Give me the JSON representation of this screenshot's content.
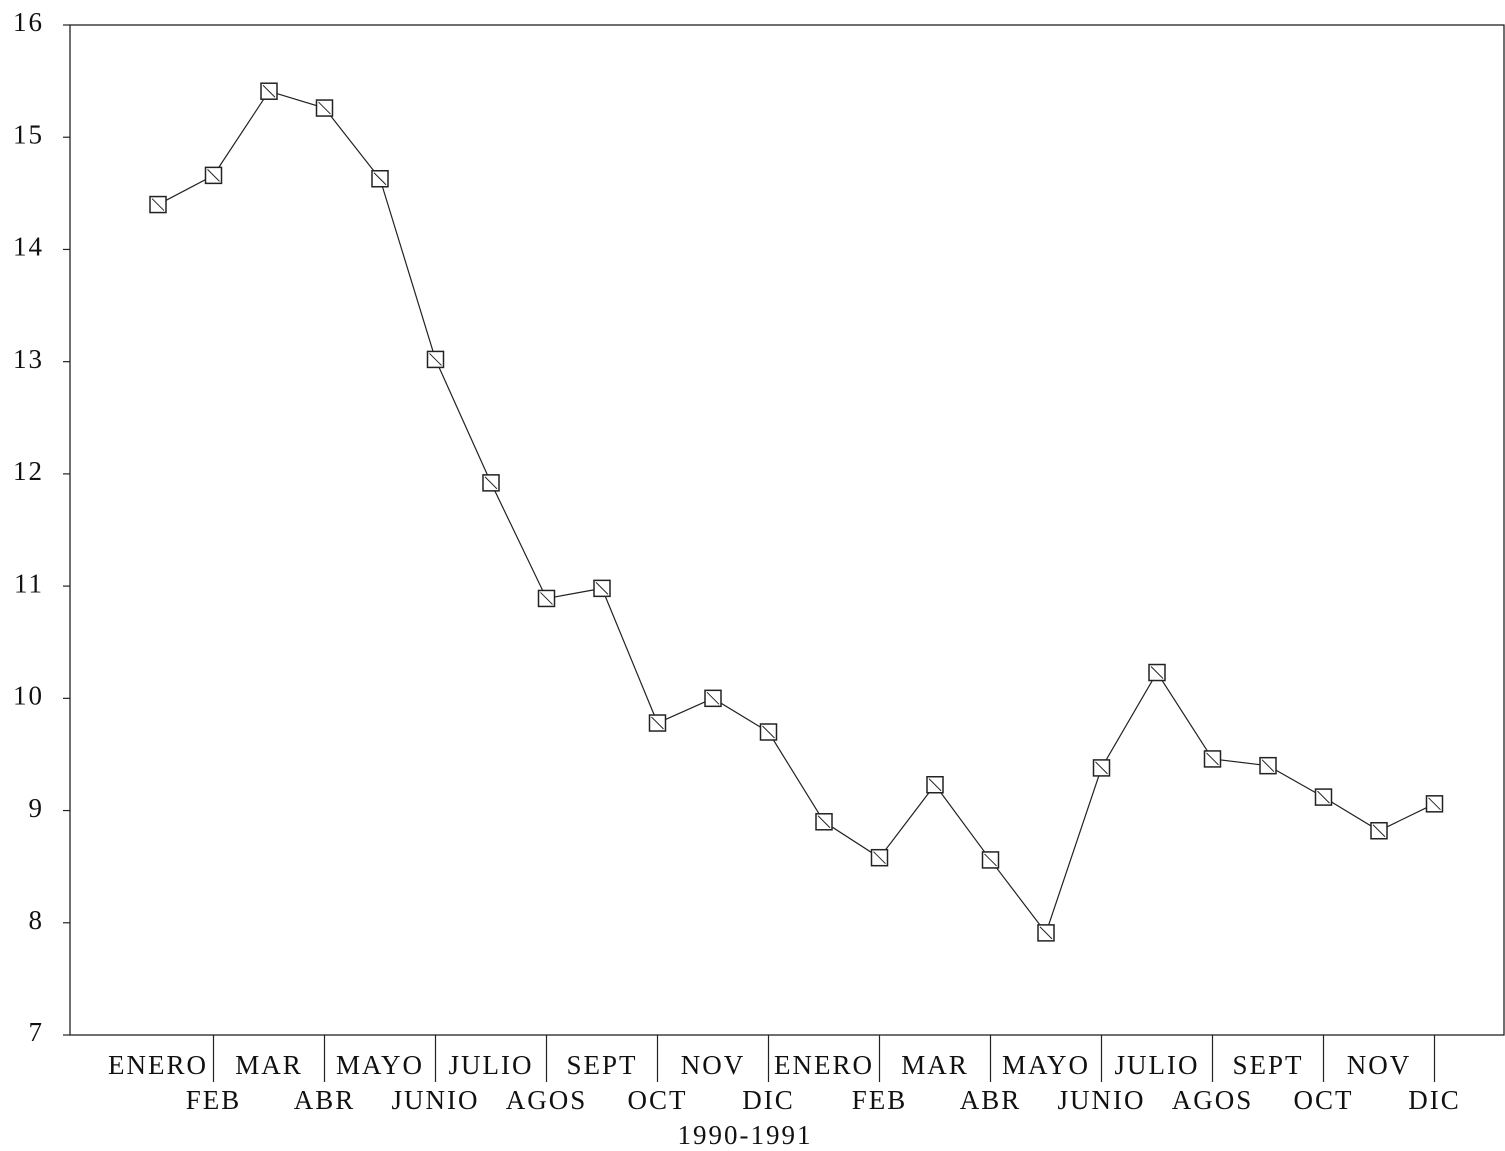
{
  "chart_data": {
    "type": "line",
    "x_label": "1990-1991",
    "categories": [
      "ENERO",
      "FEB",
      "MAR",
      "ABR",
      "MAYO",
      "JUNIO",
      "JULIO",
      "AGOS",
      "SEPT",
      "OCT",
      "NOV",
      "DIC",
      "ENERO",
      "FEB",
      "MAR",
      "ABR",
      "MAYO",
      "JUNIO",
      "JULIO",
      "AGOS",
      "SEPT",
      "OCT",
      "NOV",
      "DIC"
    ],
    "values": [
      14.4,
      14.66,
      15.41,
      15.26,
      14.63,
      13.02,
      11.92,
      10.89,
      10.98,
      9.78,
      10.0,
      9.7,
      8.9,
      8.58,
      9.23,
      8.56,
      7.91,
      9.38,
      10.23,
      9.46,
      9.4,
      9.12,
      8.82,
      9.06
    ],
    "color": "#222222",
    "ylim": [
      7,
      16
    ],
    "yticks": [
      7,
      8,
      9,
      10,
      11,
      12,
      13,
      14,
      15,
      16
    ],
    "grid": false
  }
}
